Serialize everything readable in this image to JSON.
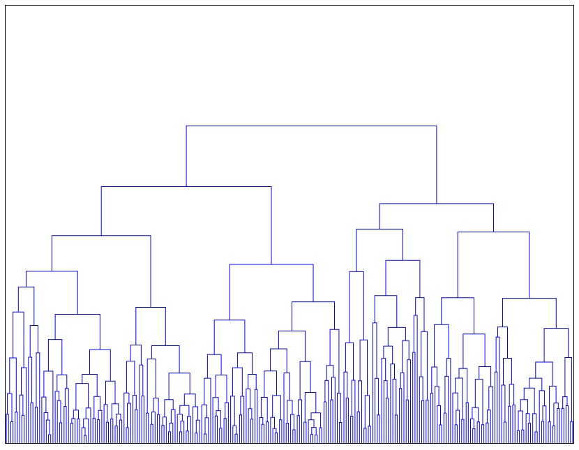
{
  "chart_data": {
    "type": "dendrogram",
    "leaf_count": 256,
    "line_color": "#0000ff",
    "frame_color": "#000000",
    "background": "#ffffff",
    "ylim": [
      0,
      1
    ]
  }
}
